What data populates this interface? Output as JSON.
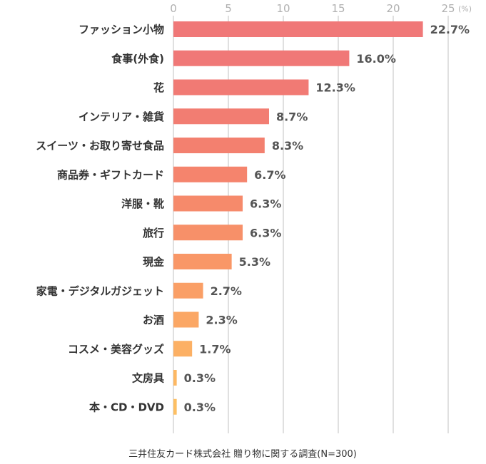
{
  "chart_data": {
    "type": "bar",
    "orientation": "horizontal",
    "categories": [
      "ファッション小物",
      "食事(外食)",
      "花",
      "インテリア・雑貨",
      "スイーツ・お取り寄せ食品",
      "商品券・ギフトカード",
      "洋服・靴",
      "旅行",
      "現金",
      "家電・デジタルガジェット",
      "お酒",
      "コスメ・美容グッズ",
      "文房具",
      "本・CD・DVD"
    ],
    "values": [
      22.7,
      16.0,
      12.3,
      8.7,
      8.3,
      6.7,
      6.3,
      6.3,
      5.3,
      2.7,
      2.3,
      1.7,
      0.3,
      0.3
    ],
    "value_labels": [
      "22.7%",
      "16.0%",
      "12.3%",
      "8.7%",
      "8.3%",
      "6.7%",
      "6.3%",
      "6.3%",
      "5.3%",
      "2.7%",
      "2.3%",
      "1.7%",
      "0.3%",
      "0.3%"
    ],
    "xlim": [
      0,
      25
    ],
    "x_ticks": [
      "0",
      "5",
      "10",
      "15",
      "20",
      "25"
    ],
    "x_unit": "(%)",
    "axis_position": "top",
    "grid": true,
    "legend": "none",
    "colors": [
      "#f07878",
      "#f07877",
      "#f17a74",
      "#f27d72",
      "#f3806f",
      "#f5846d",
      "#f68a6b",
      "#f79069",
      "#f99767",
      "#fa9f66",
      "#fba765",
      "#fcb064",
      "#fdb863",
      "#fdbf63"
    ],
    "source_note": "三井住友カード株式会社 贈り物に関する調査(N=300)"
  }
}
